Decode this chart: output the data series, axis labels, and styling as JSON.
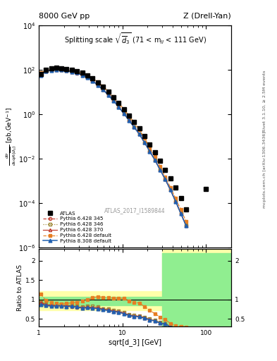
{
  "title_left": "8000 GeV pp",
  "title_right": "Z (Drell-Yan)",
  "plot_title": "Splitting scale $\\sqrt{\\overline{d}_3}$ (71 < m$_{ll}$ < 111 GeV)",
  "ylabel_main": "d$\\sigma$/dsqrt($\\overline{d_3}$) [pb,GeV$^{-1}$]",
  "ylabel_ratio": "Ratio to ATLAS",
  "xlabel": "sqrt[d_3] [GeV]",
  "right_label1": "Rivet 3.1.10, ≥ 2.5M events",
  "right_label2": "mcplots.cern.ch [arXiv:1306.3436]",
  "watermark": "ATLAS_2017_I1589844",
  "xlim": [
    1.0,
    200.0
  ],
  "ylim_main": [
    1e-06,
    10000.0
  ],
  "atlas_x": [
    1.06,
    1.22,
    1.41,
    1.62,
    1.87,
    2.15,
    2.49,
    2.87,
    3.31,
    3.82,
    4.4,
    5.08,
    5.86,
    6.76,
    7.8,
    9.0,
    10.38,
    11.97,
    13.8,
    15.92,
    18.36,
    21.17,
    24.42,
    28.16,
    32.48,
    37.47,
    43.22,
    49.84,
    57.49,
    100.0
  ],
  "atlas_y": [
    65,
    100,
    115,
    120,
    115,
    108,
    98,
    88,
    73,
    57,
    40,
    26,
    17,
    10,
    5.8,
    3.1,
    1.65,
    0.88,
    0.45,
    0.22,
    0.1,
    0.044,
    0.019,
    0.0078,
    0.0031,
    0.0013,
    0.00048,
    0.00016,
    5.2e-05,
    0.00042
  ],
  "py6_345_x": [
    1.06,
    1.22,
    1.41,
    1.62,
    1.87,
    2.15,
    2.49,
    2.87,
    3.31,
    3.82,
    4.4,
    5.08,
    5.86,
    6.76,
    7.8,
    9.0,
    10.38,
    11.97,
    13.8,
    15.92,
    18.36,
    21.17,
    24.42,
    28.16,
    32.48,
    37.47,
    43.22,
    49.84,
    57.49
  ],
  "py6_345_y": [
    59,
    85,
    96,
    100,
    96,
    89,
    80,
    70,
    57,
    45,
    31,
    20,
    12.5,
    7.2,
    4.0,
    2.1,
    1.05,
    0.52,
    0.255,
    0.123,
    0.052,
    0.021,
    0.0085,
    0.0031,
    0.00115,
    0.00038,
    0.000115,
    3.3e-05,
    9.5e-06
  ],
  "py6_346_x": [
    1.06,
    1.22,
    1.41,
    1.62,
    1.87,
    2.15,
    2.49,
    2.87,
    3.31,
    3.82,
    4.4,
    5.08,
    5.86,
    6.76,
    7.8,
    9.0,
    10.38,
    11.97,
    13.8,
    15.92,
    18.36,
    21.17,
    24.42,
    28.16,
    32.48,
    37.47,
    43.22,
    49.84,
    57.49
  ],
  "py6_346_y": [
    61,
    88,
    99,
    103,
    99,
    92,
    83,
    73,
    59,
    47,
    33,
    21,
    13,
    7.6,
    4.2,
    2.2,
    1.1,
    0.54,
    0.265,
    0.128,
    0.054,
    0.022,
    0.0088,
    0.0032,
    0.0012,
    0.0004,
    0.00012,
    3.5e-05,
    1e-05
  ],
  "py6_370_x": [
    1.06,
    1.22,
    1.41,
    1.62,
    1.87,
    2.15,
    2.49,
    2.87,
    3.31,
    3.82,
    4.4,
    5.08,
    5.86,
    6.76,
    7.8,
    9.0,
    10.38,
    11.97,
    13.8,
    15.92,
    18.36,
    21.17,
    24.42,
    28.16,
    32.48,
    37.47,
    43.22,
    49.84,
    57.49
  ],
  "py6_370_y": [
    60,
    87,
    98,
    102,
    98,
    91,
    82,
    72,
    58,
    46,
    32,
    20.5,
    12.8,
    7.4,
    4.1,
    2.15,
    1.08,
    0.53,
    0.26,
    0.126,
    0.053,
    0.0215,
    0.0086,
    0.0031,
    0.00115,
    0.000385,
    0.000118,
    3.4e-05,
    9.8e-06
  ],
  "py6_def_x": [
    1.06,
    1.22,
    1.41,
    1.62,
    1.87,
    2.15,
    2.49,
    2.87,
    3.31,
    3.82,
    4.4,
    5.08,
    5.86,
    6.76,
    7.8,
    9.0,
    10.38,
    11.97,
    13.8,
    15.92,
    18.36,
    21.17,
    24.42,
    28.16,
    32.48,
    37.47,
    43.22,
    49.84,
    57.49
  ],
  "py6_def_y": [
    74,
    97,
    106,
    108,
    103,
    97,
    90,
    82,
    70,
    57,
    42,
    28,
    18,
    10.5,
    6.0,
    3.2,
    1.7,
    0.85,
    0.42,
    0.2,
    0.082,
    0.032,
    0.012,
    0.0043,
    0.0015,
    0.0005,
    0.00016,
    5e-05,
    1.5e-05
  ],
  "py8_def_x": [
    1.06,
    1.22,
    1.41,
    1.62,
    1.87,
    2.15,
    2.49,
    2.87,
    3.31,
    3.82,
    4.4,
    5.08,
    5.86,
    6.76,
    7.8,
    9.0,
    10.38,
    11.97,
    13.8,
    15.92,
    18.36,
    21.17,
    24.42,
    28.16,
    32.48,
    37.47,
    43.22,
    49.84,
    57.49
  ],
  "py8_def_y": [
    57,
    85,
    95,
    100,
    96,
    89,
    81,
    71,
    57,
    45,
    31,
    20,
    12.5,
    7.2,
    4.0,
    2.1,
    1.05,
    0.52,
    0.255,
    0.123,
    0.052,
    0.021,
    0.0085,
    0.0031,
    0.00115,
    0.00038,
    0.000115,
    3.3e-05,
    9.5e-06
  ],
  "colors": {
    "atlas": "#000000",
    "py6_345": "#c0392b",
    "py6_346": "#9b8530",
    "py6_370": "#c0392b",
    "py6_def": "#e67e22",
    "py8_def": "#2060b0"
  },
  "green_color": "#90EE90",
  "yellow_color": "#FFFFAA"
}
